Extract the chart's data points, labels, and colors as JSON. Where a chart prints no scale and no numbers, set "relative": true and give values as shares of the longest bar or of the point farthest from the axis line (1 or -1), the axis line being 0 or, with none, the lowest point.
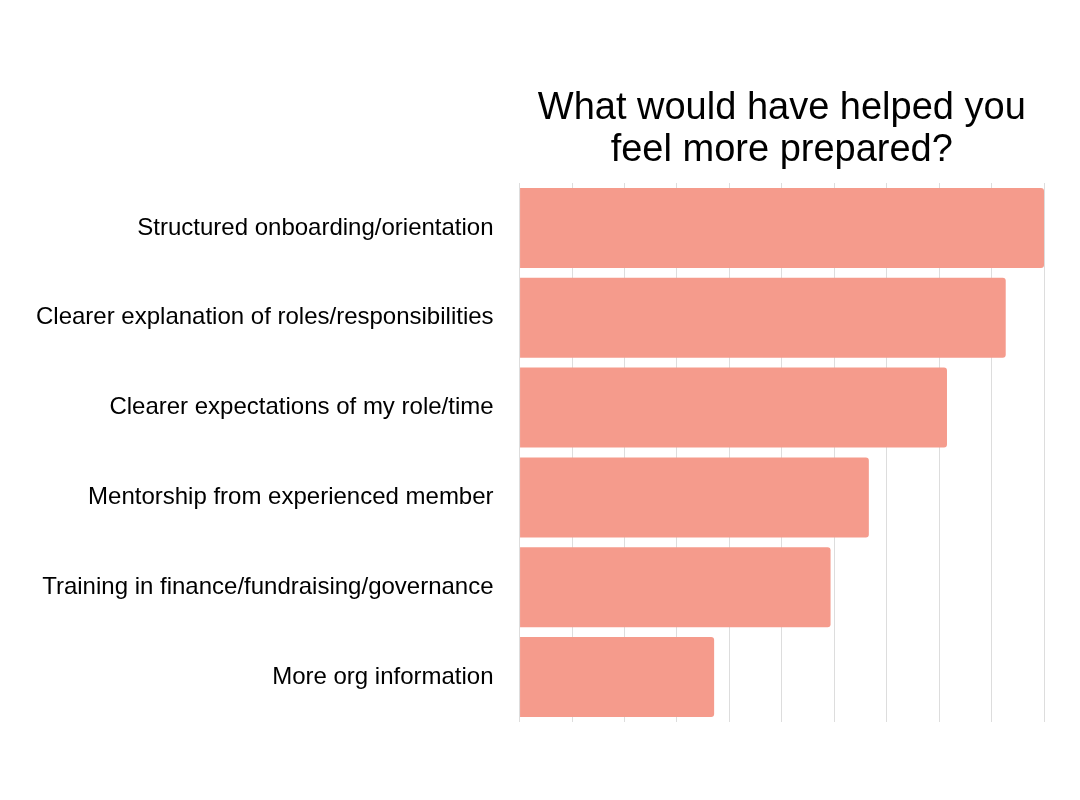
{
  "chart_data": {
    "type": "bar",
    "orientation": "horizontal",
    "relative": true,
    "title": "What would have helped you feel more prepared?",
    "categories": [
      "Structured onboarding/orientation",
      "Clearer explanation of roles/responsibilities",
      "Clearer expectations of my role/time",
      "Mentorship from experienced member",
      "Training in finance/fundraising/governance",
      "More org information"
    ],
    "values": [
      1,
      0.927,
      0.815,
      0.666,
      0.593,
      0.371
    ],
    "color": "#f59b8c",
    "grid": "x",
    "legend": false
  }
}
